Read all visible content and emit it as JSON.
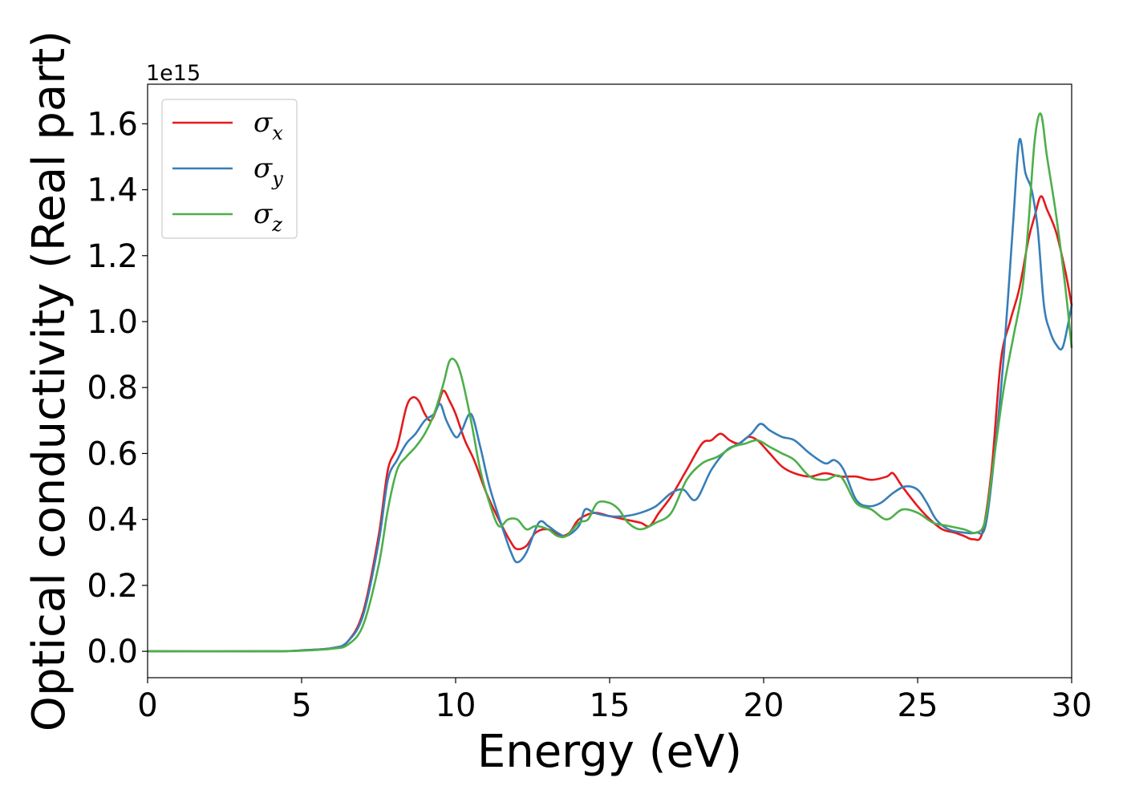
{
  "chart_data": {
    "type": "line",
    "title": "",
    "xlabel": "Energy (eV)",
    "ylabel": "Optical conductivity (Real part)",
    "y_offset_label": "1e15",
    "xlim": [
      0,
      30
    ],
    "ylim": [
      -0.08,
      1.72
    ],
    "xticks": [
      0,
      5,
      10,
      15,
      20,
      25,
      30
    ],
    "xtick_labels": [
      "0",
      "5",
      "10",
      "15",
      "20",
      "25",
      "30"
    ],
    "yticks": [
      0.0,
      0.2,
      0.4,
      0.6,
      0.8,
      1.0,
      1.2,
      1.4,
      1.6
    ],
    "ytick_labels": [
      "0.0",
      "0.2",
      "0.4",
      "0.6",
      "0.8",
      "1.0",
      "1.2",
      "1.4",
      "1.6"
    ],
    "grid": false,
    "legend_position": "top-left",
    "series": [
      {
        "name": "σ",
        "subscript": "x",
        "color": "#e41a1c",
        "points": [
          [
            0,
            0
          ],
          [
            4,
            0
          ],
          [
            5,
            0.003
          ],
          [
            6,
            0.01
          ],
          [
            6.5,
            0.03
          ],
          [
            7,
            0.12
          ],
          [
            7.5,
            0.35
          ],
          [
            7.8,
            0.55
          ],
          [
            8.1,
            0.62
          ],
          [
            8.4,
            0.74
          ],
          [
            8.6,
            0.77
          ],
          [
            8.8,
            0.76
          ],
          [
            9.0,
            0.72
          ],
          [
            9.2,
            0.7
          ],
          [
            9.4,
            0.74
          ],
          [
            9.6,
            0.79
          ],
          [
            9.8,
            0.76
          ],
          [
            10.0,
            0.72
          ],
          [
            10.3,
            0.64
          ],
          [
            10.6,
            0.58
          ],
          [
            11.0,
            0.48
          ],
          [
            11.4,
            0.4
          ],
          [
            11.8,
            0.33
          ],
          [
            12.0,
            0.31
          ],
          [
            12.3,
            0.32
          ],
          [
            12.6,
            0.36
          ],
          [
            13.0,
            0.37
          ],
          [
            13.4,
            0.35
          ],
          [
            13.7,
            0.36
          ],
          [
            14.0,
            0.4
          ],
          [
            14.5,
            0.42
          ],
          [
            15.0,
            0.41
          ],
          [
            15.5,
            0.4
          ],
          [
            16.0,
            0.39
          ],
          [
            16.3,
            0.38
          ],
          [
            16.6,
            0.42
          ],
          [
            17.0,
            0.47
          ],
          [
            17.5,
            0.55
          ],
          [
            18.0,
            0.63
          ],
          [
            18.3,
            0.64
          ],
          [
            18.6,
            0.66
          ],
          [
            18.9,
            0.64
          ],
          [
            19.2,
            0.63
          ],
          [
            19.5,
            0.65
          ],
          [
            19.8,
            0.64
          ],
          [
            20.2,
            0.6
          ],
          [
            20.6,
            0.56
          ],
          [
            21.0,
            0.54
          ],
          [
            21.5,
            0.53
          ],
          [
            22.0,
            0.54
          ],
          [
            22.5,
            0.53
          ],
          [
            23.0,
            0.53
          ],
          [
            23.5,
            0.52
          ],
          [
            24.0,
            0.53
          ],
          [
            24.2,
            0.54
          ],
          [
            24.5,
            0.5
          ],
          [
            25.0,
            0.44
          ],
          [
            25.4,
            0.4
          ],
          [
            25.8,
            0.37
          ],
          [
            26.2,
            0.36
          ],
          [
            26.5,
            0.35
          ],
          [
            26.8,
            0.34
          ],
          [
            27.1,
            0.36
          ],
          [
            27.4,
            0.55
          ],
          [
            27.7,
            0.88
          ],
          [
            28.0,
            1.0
          ],
          [
            28.3,
            1.1
          ],
          [
            28.6,
            1.25
          ],
          [
            28.8,
            1.32
          ],
          [
            29.0,
            1.38
          ],
          [
            29.2,
            1.34
          ],
          [
            29.5,
            1.27
          ],
          [
            29.8,
            1.15
          ],
          [
            30.0,
            1.05
          ]
        ]
      },
      {
        "name": "σ",
        "subscript": "y",
        "color": "#377eb8",
        "points": [
          [
            0,
            0
          ],
          [
            4,
            0
          ],
          [
            5,
            0.003
          ],
          [
            6,
            0.01
          ],
          [
            6.5,
            0.03
          ],
          [
            7,
            0.11
          ],
          [
            7.5,
            0.33
          ],
          [
            7.8,
            0.52
          ],
          [
            8.1,
            0.58
          ],
          [
            8.4,
            0.63
          ],
          [
            8.7,
            0.66
          ],
          [
            9.0,
            0.7
          ],
          [
            9.3,
            0.72
          ],
          [
            9.5,
            0.75
          ],
          [
            9.7,
            0.7
          ],
          [
            10.0,
            0.65
          ],
          [
            10.2,
            0.67
          ],
          [
            10.5,
            0.72
          ],
          [
            10.8,
            0.62
          ],
          [
            11.1,
            0.5
          ],
          [
            11.5,
            0.38
          ],
          [
            11.8,
            0.3
          ],
          [
            12.0,
            0.27
          ],
          [
            12.3,
            0.3
          ],
          [
            12.7,
            0.39
          ],
          [
            13.0,
            0.38
          ],
          [
            13.3,
            0.36
          ],
          [
            13.6,
            0.35
          ],
          [
            14.0,
            0.38
          ],
          [
            14.2,
            0.43
          ],
          [
            14.5,
            0.42
          ],
          [
            15.0,
            0.41
          ],
          [
            15.5,
            0.41
          ],
          [
            16.0,
            0.42
          ],
          [
            16.5,
            0.44
          ],
          [
            17.0,
            0.48
          ],
          [
            17.4,
            0.49
          ],
          [
            17.8,
            0.46
          ],
          [
            18.3,
            0.55
          ],
          [
            18.8,
            0.61
          ],
          [
            19.2,
            0.63
          ],
          [
            19.6,
            0.66
          ],
          [
            19.9,
            0.69
          ],
          [
            20.2,
            0.67
          ],
          [
            20.6,
            0.65
          ],
          [
            21.0,
            0.64
          ],
          [
            21.5,
            0.6
          ],
          [
            22.0,
            0.57
          ],
          [
            22.3,
            0.58
          ],
          [
            22.6,
            0.55
          ],
          [
            23.0,
            0.46
          ],
          [
            23.4,
            0.44
          ],
          [
            23.8,
            0.45
          ],
          [
            24.2,
            0.48
          ],
          [
            24.6,
            0.5
          ],
          [
            25.0,
            0.49
          ],
          [
            25.3,
            0.45
          ],
          [
            25.6,
            0.4
          ],
          [
            26.0,
            0.37
          ],
          [
            26.5,
            0.36
          ],
          [
            26.9,
            0.36
          ],
          [
            27.2,
            0.38
          ],
          [
            27.5,
            0.6
          ],
          [
            27.8,
            0.9
          ],
          [
            28.1,
            1.3
          ],
          [
            28.3,
            1.55
          ],
          [
            28.5,
            1.45
          ],
          [
            28.7,
            1.4
          ],
          [
            28.9,
            1.28
          ],
          [
            29.1,
            1.05
          ],
          [
            29.3,
            0.97
          ],
          [
            29.5,
            0.93
          ],
          [
            29.7,
            0.92
          ],
          [
            29.9,
            1.0
          ],
          [
            30.0,
            1.05
          ]
        ]
      },
      {
        "name": "σ",
        "subscript": "z",
        "color": "#4daf4a",
        "points": [
          [
            0,
            0
          ],
          [
            4,
            0
          ],
          [
            5,
            0.002
          ],
          [
            6,
            0.008
          ],
          [
            6.5,
            0.02
          ],
          [
            7,
            0.08
          ],
          [
            7.5,
            0.26
          ],
          [
            7.8,
            0.43
          ],
          [
            8.1,
            0.55
          ],
          [
            8.4,
            0.59
          ],
          [
            8.7,
            0.62
          ],
          [
            9.0,
            0.66
          ],
          [
            9.3,
            0.72
          ],
          [
            9.6,
            0.81
          ],
          [
            9.8,
            0.88
          ],
          [
            10.0,
            0.88
          ],
          [
            10.2,
            0.83
          ],
          [
            10.5,
            0.7
          ],
          [
            10.8,
            0.55
          ],
          [
            11.1,
            0.45
          ],
          [
            11.4,
            0.38
          ],
          [
            11.7,
            0.4
          ],
          [
            12.0,
            0.4
          ],
          [
            12.3,
            0.37
          ],
          [
            12.6,
            0.38
          ],
          [
            13.0,
            0.37
          ],
          [
            13.3,
            0.35
          ],
          [
            13.6,
            0.35
          ],
          [
            14.0,
            0.39
          ],
          [
            14.3,
            0.4
          ],
          [
            14.6,
            0.45
          ],
          [
            15.0,
            0.45
          ],
          [
            15.3,
            0.43
          ],
          [
            15.6,
            0.39
          ],
          [
            16.0,
            0.37
          ],
          [
            16.5,
            0.39
          ],
          [
            17.0,
            0.42
          ],
          [
            17.5,
            0.52
          ],
          [
            18.0,
            0.57
          ],
          [
            18.5,
            0.59
          ],
          [
            19.0,
            0.62
          ],
          [
            19.4,
            0.63
          ],
          [
            19.8,
            0.64
          ],
          [
            20.2,
            0.62
          ],
          [
            20.6,
            0.6
          ],
          [
            21.0,
            0.58
          ],
          [
            21.5,
            0.53
          ],
          [
            22.0,
            0.52
          ],
          [
            22.5,
            0.53
          ],
          [
            23.0,
            0.45
          ],
          [
            23.5,
            0.43
          ],
          [
            24.0,
            0.4
          ],
          [
            24.5,
            0.43
          ],
          [
            25.0,
            0.42
          ],
          [
            25.5,
            0.39
          ],
          [
            26.0,
            0.38
          ],
          [
            26.5,
            0.37
          ],
          [
            26.9,
            0.36
          ],
          [
            27.2,
            0.4
          ],
          [
            27.5,
            0.6
          ],
          [
            27.8,
            0.8
          ],
          [
            28.1,
            0.95
          ],
          [
            28.4,
            1.1
          ],
          [
            28.6,
            1.3
          ],
          [
            28.8,
            1.55
          ],
          [
            29.0,
            1.63
          ],
          [
            29.2,
            1.5
          ],
          [
            29.5,
            1.32
          ],
          [
            29.8,
            1.1
          ],
          [
            30.0,
            0.92
          ]
        ]
      }
    ]
  }
}
